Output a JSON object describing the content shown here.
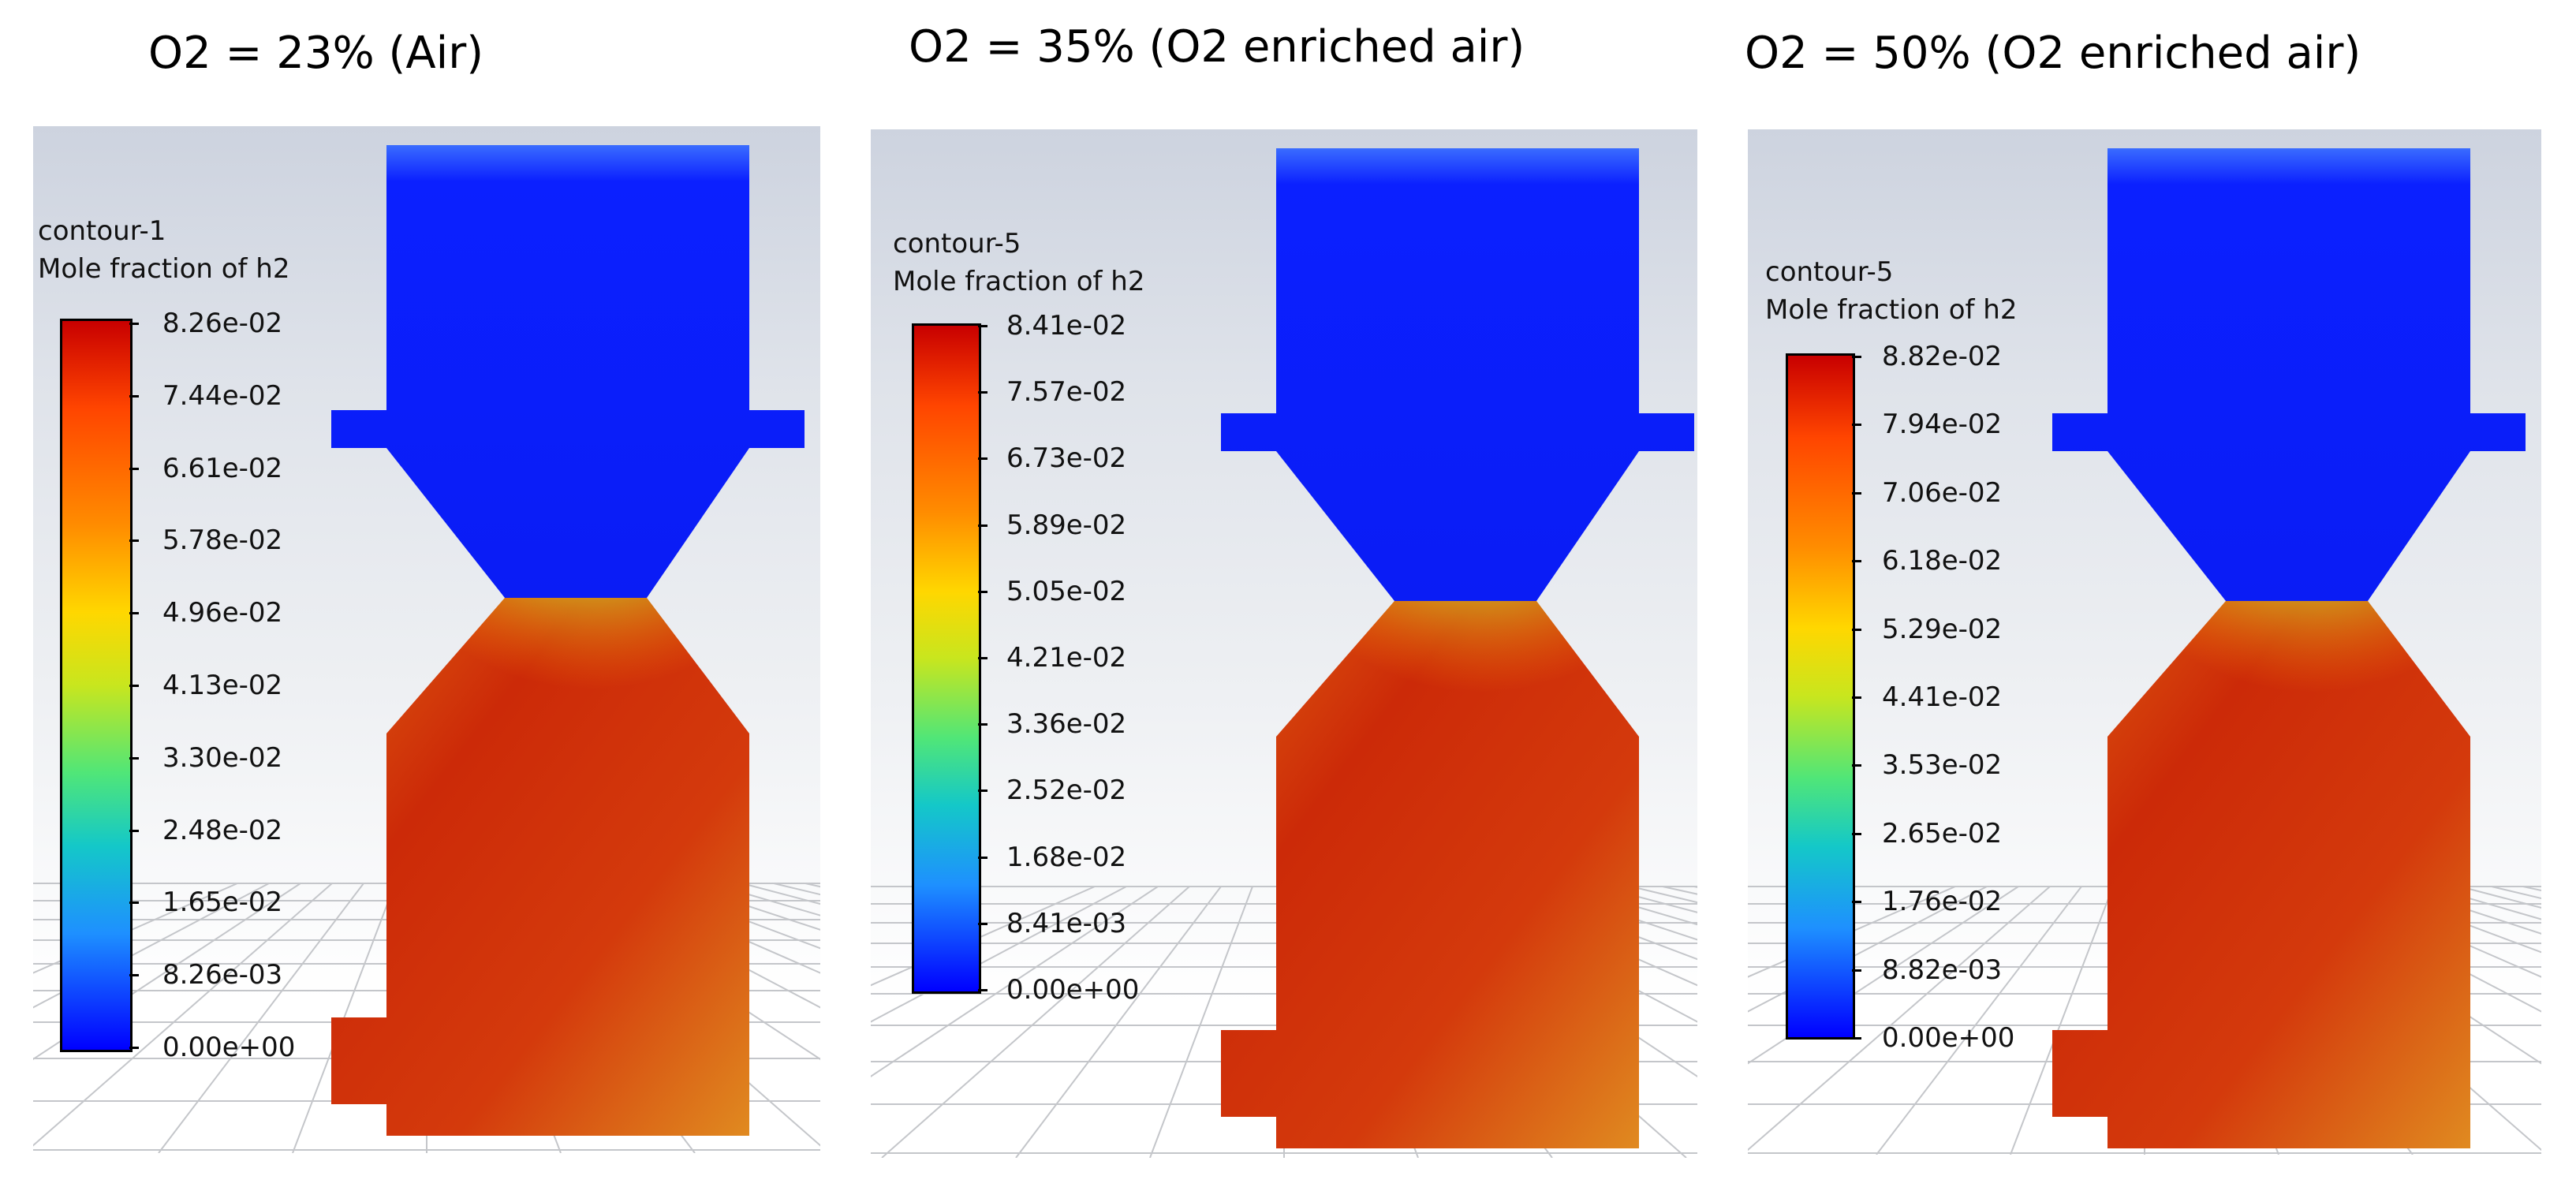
{
  "panels": [
    {
      "title": "O2 = 23% (Air)",
      "legend_name": "contour-1",
      "legend_quantity": "Mole fraction of h2",
      "ticks": [
        "8.26e-02",
        "7.44e-02",
        "6.61e-02",
        "5.78e-02",
        "4.96e-02",
        "4.13e-02",
        "3.30e-02",
        "2.48e-02",
        "1.65e-02",
        "8.26e-03",
        "0.00e+00"
      ]
    },
    {
      "title": "O2 = 35% (O2 enriched air)",
      "legend_name": "contour-5",
      "legend_quantity": "Mole fraction of h2",
      "ticks": [
        "8.41e-02",
        "7.57e-02",
        "6.73e-02",
        "5.89e-02",
        "5.05e-02",
        "4.21e-02",
        "3.36e-02",
        "2.52e-02",
        "1.68e-02",
        "8.41e-03",
        "0.00e+00"
      ]
    },
    {
      "title": "O2 = 50% (O2 enriched air)",
      "legend_name": "contour-5",
      "legend_quantity": "Mole fraction of h2",
      "ticks": [
        "8.82e-02",
        "7.94e-02",
        "7.06e-02",
        "6.18e-02",
        "5.29e-02",
        "4.41e-02",
        "3.53e-02",
        "2.65e-02",
        "1.76e-02",
        "8.82e-03",
        "0.00e+00"
      ]
    }
  ],
  "colors": {
    "low": "#0000ff",
    "high": "#c80000",
    "geometry_top": "#0a1eff"
  }
}
